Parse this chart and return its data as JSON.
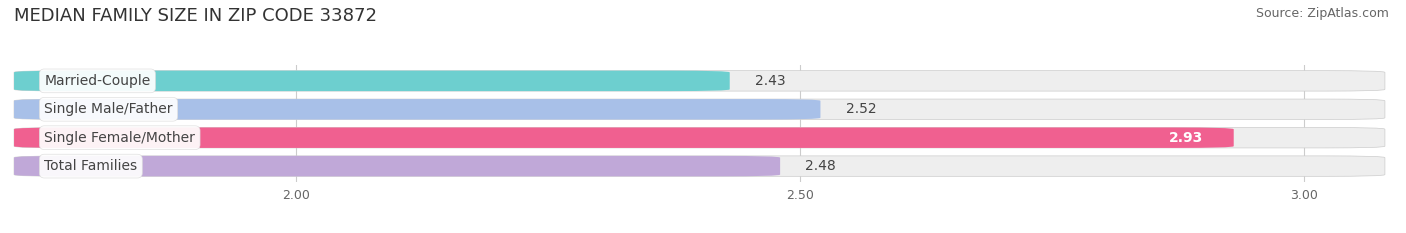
{
  "title": "MEDIAN FAMILY SIZE IN ZIP CODE 33872",
  "source": "Source: ZipAtlas.com",
  "categories": [
    "Married-Couple",
    "Single Male/Father",
    "Single Female/Mother",
    "Total Families"
  ],
  "values": [
    2.43,
    2.52,
    2.93,
    2.48
  ],
  "bar_colors": [
    "#6dcfcf",
    "#a8c0e8",
    "#f06090",
    "#c0a8d8"
  ],
  "value_text_colors": [
    "#555555",
    "#555555",
    "#ffffff",
    "#555555"
  ],
  "xlim_left": 1.72,
  "xlim_right": 3.08,
  "xticks": [
    2.0,
    2.5,
    3.0
  ],
  "xtick_labels": [
    "2.00",
    "2.50",
    "3.00"
  ],
  "background_color": "#ffffff",
  "bar_bg_color": "#eeeeee",
  "title_fontsize": 13,
  "source_fontsize": 9,
  "label_fontsize": 10,
  "value_fontsize": 10,
  "tick_fontsize": 9,
  "figsize": [
    14.06,
    2.33
  ],
  "dpi": 100
}
